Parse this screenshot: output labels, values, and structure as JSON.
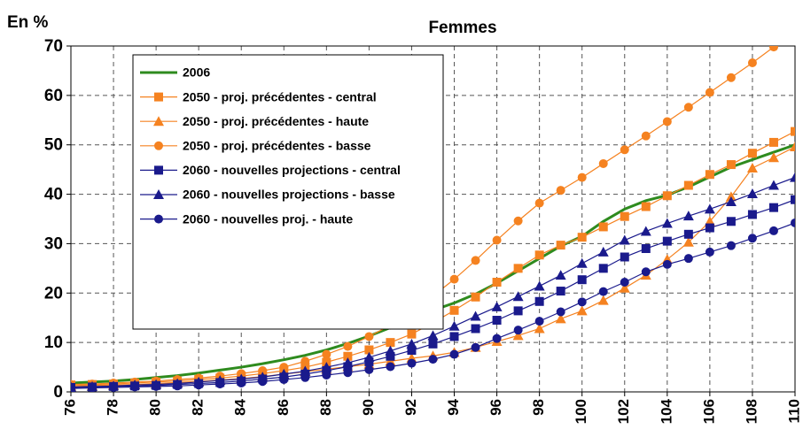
{
  "chart_data": {
    "type": "line",
    "title": "Femmes",
    "y_label": "En %",
    "x": [
      76,
      77,
      78,
      79,
      80,
      81,
      82,
      83,
      84,
      85,
      86,
      87,
      88,
      89,
      90,
      91,
      92,
      93,
      94,
      95,
      96,
      97,
      98,
      99,
      100,
      101,
      102,
      103,
      104,
      105,
      106,
      107,
      108,
      109,
      110
    ],
    "xlim": [
      76,
      110
    ],
    "xticks": [
      76,
      78,
      80,
      82,
      84,
      86,
      88,
      90,
      92,
      94,
      96,
      98,
      100,
      102,
      104,
      106,
      108,
      110
    ],
    "ylim": [
      0,
      70
    ],
    "yticks": [
      0,
      10,
      20,
      30,
      40,
      50,
      60,
      70
    ],
    "grid": true,
    "legend": "upper left",
    "series": [
      {
        "name": "2006",
        "color": "#2e8b1e",
        "values": [
          1.8,
          2.0,
          2.2,
          2.5,
          2.9,
          3.3,
          3.8,
          4.4,
          5.0,
          5.7,
          6.5,
          7.4,
          8.5,
          9.8,
          11.3,
          13.0,
          14.9,
          16.5,
          18.0,
          19.8,
          22.0,
          24.5,
          27.0,
          29.5,
          31.5,
          34.5,
          37.0,
          38.7,
          39.8,
          41.5,
          43.5,
          45.5,
          47.0,
          48.5,
          50.0
        ]
      },
      {
        "name": "2050 - proj. précédentes - central",
        "color": "#f58220",
        "marker": "square",
        "values": [
          1.4,
          1.5,
          1.6,
          1.8,
          2.0,
          2.2,
          2.5,
          2.8,
          3.2,
          3.7,
          4.3,
          5.0,
          6.0,
          7.2,
          8.5,
          10.0,
          11.7,
          14.0,
          16.5,
          19.2,
          22.2,
          25.0,
          27.7,
          29.7,
          31.3,
          33.4,
          35.5,
          37.5,
          39.7,
          41.8,
          44.0,
          46.0,
          48.3,
          50.5,
          52.7
        ]
      },
      {
        "name": "2050 - proj. précédentes - haute",
        "color": "#f58220",
        "marker": "triangle",
        "values": [
          1.2,
          1.3,
          1.4,
          1.5,
          1.7,
          1.9,
          2.1,
          2.4,
          2.7,
          3.1,
          3.6,
          4.1,
          4.6,
          5.1,
          5.6,
          6.2,
          6.8,
          7.3,
          8.0,
          9.0,
          10.2,
          11.4,
          12.8,
          14.8,
          16.4,
          18.5,
          21.0,
          23.6,
          26.8,
          30.3,
          34.5,
          39.5,
          45.3,
          47.4,
          49.6
        ]
      },
      {
        "name": "2050 - proj. précédentes - basse",
        "color": "#f58220",
        "marker": "circle",
        "values": [
          1.5,
          1.6,
          1.8,
          2.0,
          2.2,
          2.5,
          2.8,
          3.2,
          3.7,
          4.3,
          5.0,
          6.2,
          7.6,
          9.2,
          11.2,
          13.5,
          16.2,
          19.4,
          22.8,
          26.6,
          30.7,
          34.6,
          38.2,
          40.8,
          43.4,
          46.2,
          49.0,
          51.8,
          54.7,
          57.6,
          60.6,
          63.6,
          66.6,
          69.8,
          72.8
        ]
      },
      {
        "name": "2060 - nouvelles projections - central",
        "color": "#1a1a8c",
        "marker": "square",
        "values": [
          0.9,
          1.0,
          1.1,
          1.2,
          1.3,
          1.5,
          1.7,
          1.9,
          2.2,
          2.6,
          3.0,
          3.6,
          4.3,
          5.1,
          6.1,
          7.2,
          8.4,
          9.7,
          11.2,
          12.8,
          14.5,
          16.4,
          18.3,
          20.4,
          22.7,
          25.0,
          27.3,
          29.0,
          30.5,
          31.9,
          33.2,
          34.5,
          35.9,
          37.3,
          38.9
        ]
      },
      {
        "name": "2060 - nouvelles projections - basse",
        "color": "#1a1a8c",
        "marker": "triangle",
        "values": [
          1.0,
          1.1,
          1.2,
          1.4,
          1.5,
          1.7,
          2.0,
          2.3,
          2.6,
          3.0,
          3.6,
          4.2,
          5.0,
          5.9,
          7.0,
          8.3,
          9.7,
          11.4,
          13.3,
          15.3,
          17.2,
          19.3,
          21.4,
          23.6,
          26.0,
          28.3,
          30.7,
          32.5,
          34.1,
          35.6,
          37.0,
          38.5,
          40.1,
          41.8,
          43.4
        ]
      },
      {
        "name": "2060 - nouvelles proj. - haute",
        "color": "#1a1a8c",
        "marker": "circle",
        "values": [
          0.7,
          0.8,
          0.9,
          1.0,
          1.1,
          1.2,
          1.4,
          1.6,
          1.8,
          2.1,
          2.5,
          2.9,
          3.4,
          3.9,
          4.5,
          5.1,
          5.8,
          6.6,
          7.6,
          9.0,
          10.8,
          12.5,
          14.3,
          16.2,
          18.2,
          20.3,
          22.2,
          24.3,
          25.8,
          27.0,
          28.3,
          29.6,
          31.1,
          32.6,
          34.2
        ]
      }
    ]
  }
}
